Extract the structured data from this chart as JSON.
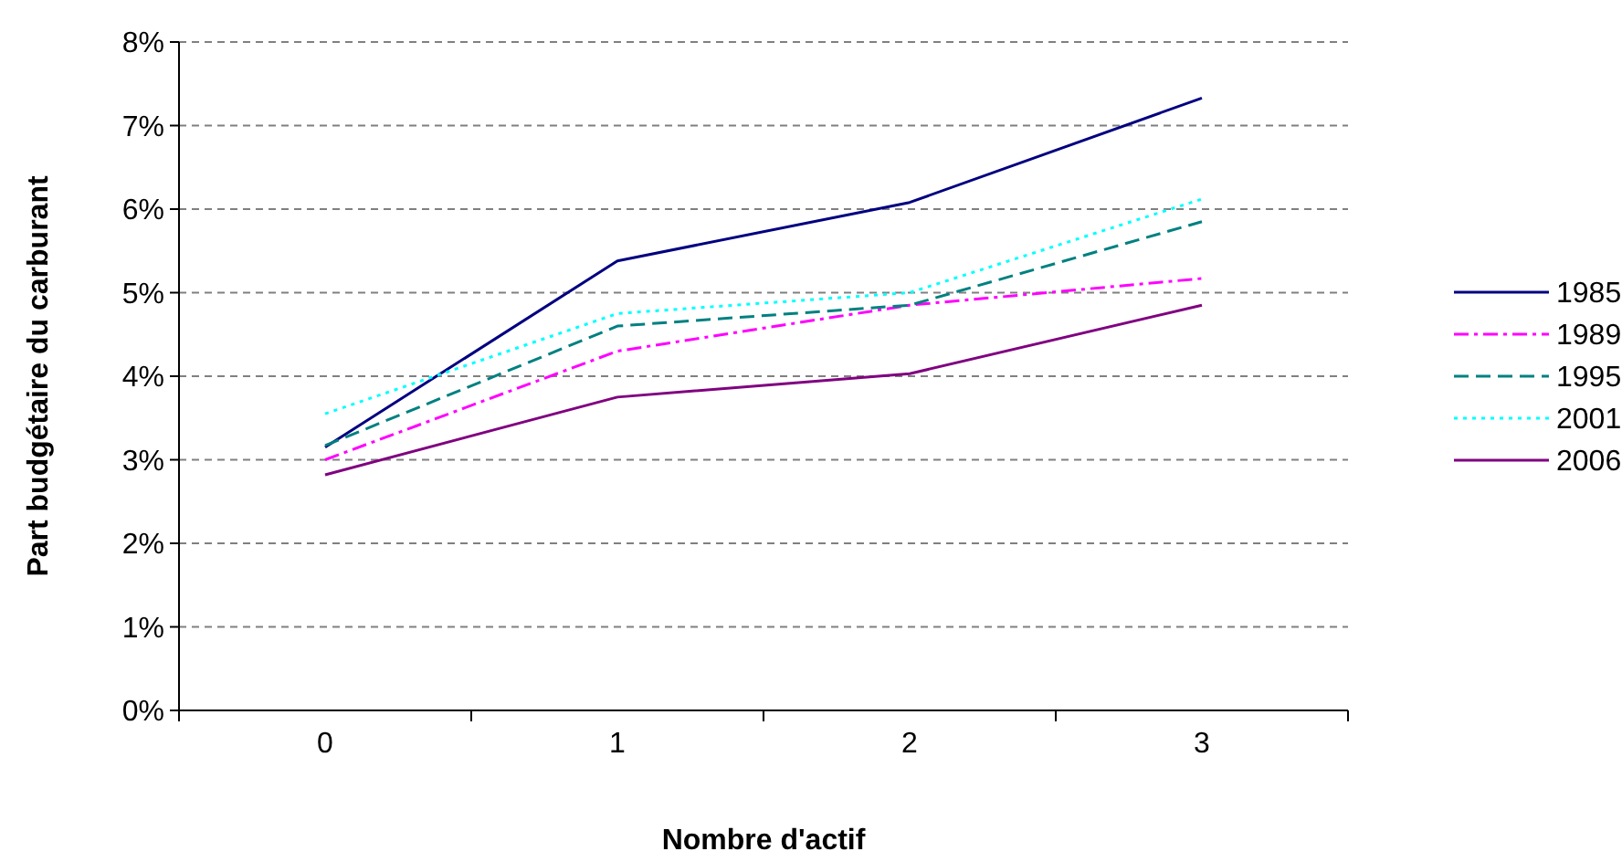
{
  "chart_data": {
    "type": "line",
    "xlabel": "Nombre d'actif",
    "ylabel": "Part budgétaire du carburant",
    "categories": [
      "0",
      "1",
      "2",
      "3"
    ],
    "series": [
      {
        "name": "1985",
        "color": "#000080",
        "line_style": "solid",
        "values": [
          3.15,
          5.38,
          6.08,
          7.33
        ]
      },
      {
        "name": "1989",
        "color": "#ff00ff",
        "line_style": "dashdot",
        "values": [
          3.0,
          4.3,
          4.85,
          5.17
        ]
      },
      {
        "name": "1995",
        "color": "#008080",
        "line_style": "dashed",
        "values": [
          3.17,
          4.6,
          4.85,
          5.85
        ]
      },
      {
        "name": "2001",
        "color": "#00ffff",
        "line_style": "dotted",
        "values": [
          3.55,
          4.75,
          5.0,
          6.12
        ]
      },
      {
        "name": "2006",
        "color": "#800080",
        "line_style": "solid",
        "values": [
          2.82,
          3.75,
          4.03,
          4.85
        ]
      }
    ],
    "ylim": [
      0,
      8
    ],
    "yticks": [
      {
        "value": 0,
        "label": "0%"
      },
      {
        "value": 1,
        "label": "1%"
      },
      {
        "value": 2,
        "label": "2%"
      },
      {
        "value": 3,
        "label": "3%"
      },
      {
        "value": 4,
        "label": "4%"
      },
      {
        "value": 5,
        "label": "5%"
      },
      {
        "value": 6,
        "label": "6%"
      },
      {
        "value": 7,
        "label": "7%"
      },
      {
        "value": 8,
        "label": "8%"
      }
    ],
    "grid": "y",
    "legend": "right",
    "marker": "none"
  }
}
